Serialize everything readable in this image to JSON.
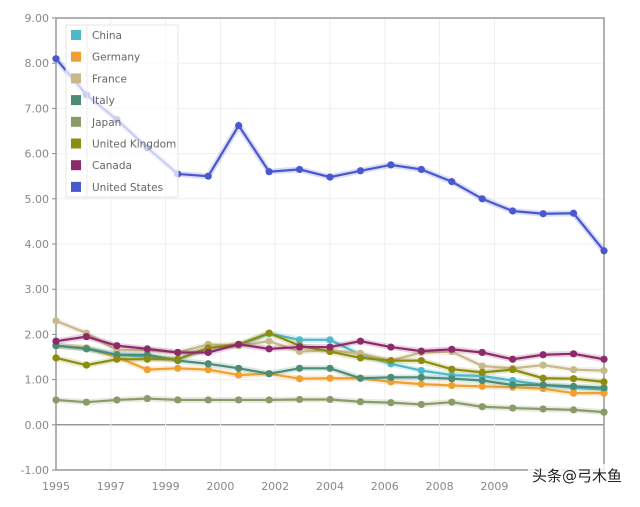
{
  "chart_data": {
    "type": "line",
    "title": "",
    "xlabel": "",
    "ylabel": "",
    "ylim": [
      -1,
      9
    ],
    "yticks": [
      "9.00",
      "8.00",
      "7.00",
      "6.00",
      "5.00",
      "4.00",
      "3.00",
      "2.00",
      "1.00",
      "0.00",
      "-1.00"
    ],
    "ytick_values": [
      9,
      8,
      7,
      6,
      5,
      4,
      3,
      2,
      1,
      0,
      -1
    ],
    "xticks": [
      "1995",
      "1997",
      "1999",
      "2000",
      "2002",
      "2004",
      "2006",
      "2008",
      "2009"
    ],
    "xtick_positions": [
      0,
      1.8,
      3.6,
      5.4,
      7.2,
      9.0,
      10.8,
      12.6,
      14.4
    ],
    "x": [
      0,
      1,
      2,
      3,
      4,
      5,
      6,
      7,
      8,
      9,
      10,
      11,
      12,
      13,
      14,
      15,
      16,
      17,
      18
    ],
    "grid": true,
    "legend_position": "top-left",
    "series": [
      {
        "name": "China",
        "color": "#4db8c8",
        "values": [
          1.75,
          1.7,
          1.55,
          1.5,
          1.45,
          1.7,
          1.75,
          2.02,
          1.88,
          1.88,
          1.55,
          1.35,
          1.2,
          1.1,
          1.08,
          0.98,
          0.88,
          0.82,
          0.78
        ]
      },
      {
        "name": "Germany",
        "color": "#f0a030",
        "values": [
          1.75,
          1.7,
          1.5,
          1.22,
          1.25,
          1.22,
          1.1,
          1.13,
          1.02,
          1.03,
          1.03,
          0.95,
          0.9,
          0.87,
          0.85,
          0.83,
          0.8,
          0.7,
          0.7
        ]
      },
      {
        "name": "France",
        "color": "#c8b88a",
        "values": [
          2.3,
          2.03,
          1.65,
          1.65,
          1.6,
          1.78,
          1.75,
          1.85,
          1.62,
          1.65,
          1.58,
          1.42,
          1.6,
          1.62,
          1.3,
          1.25,
          1.32,
          1.22,
          1.2
        ]
      },
      {
        "name": "Italy",
        "color": "#4a8c78",
        "values": [
          1.75,
          1.68,
          1.55,
          1.55,
          1.42,
          1.35,
          1.25,
          1.13,
          1.25,
          1.25,
          1.03,
          1.05,
          1.05,
          1.02,
          0.98,
          0.88,
          0.88,
          0.85,
          0.82
        ]
      },
      {
        "name": "Japan",
        "color": "#8a9a68",
        "values": [
          0.55,
          0.5,
          0.55,
          0.58,
          0.55,
          0.55,
          0.55,
          0.55,
          0.56,
          0.56,
          0.51,
          0.49,
          0.45,
          0.5,
          0.4,
          0.37,
          0.35,
          0.33,
          0.28
        ]
      },
      {
        "name": "United Kingdom",
        "color": "#8c8c10",
        "values": [
          1.48,
          1.32,
          1.45,
          1.45,
          1.45,
          1.7,
          1.78,
          2.03,
          1.75,
          1.62,
          1.48,
          1.42,
          1.42,
          1.23,
          1.16,
          1.22,
          1.03,
          1.02,
          0.95
        ]
      },
      {
        "name": "Canada",
        "color": "#8c2a6a",
        "values": [
          1.85,
          1.95,
          1.75,
          1.68,
          1.6,
          1.6,
          1.78,
          1.68,
          1.72,
          1.72,
          1.85,
          1.72,
          1.63,
          1.67,
          1.6,
          1.45,
          1.55,
          1.57,
          1.45
        ]
      },
      {
        "name": "United States",
        "color": "#4a58d0",
        "values": [
          8.1,
          7.3,
          6.75,
          6.13,
          5.55,
          5.5,
          6.62,
          5.6,
          5.65,
          5.48,
          5.62,
          5.75,
          5.65,
          5.38,
          5.0,
          4.73,
          4.67,
          4.68,
          3.85
        ]
      }
    ]
  },
  "watermark": "头条@弓木鱼"
}
